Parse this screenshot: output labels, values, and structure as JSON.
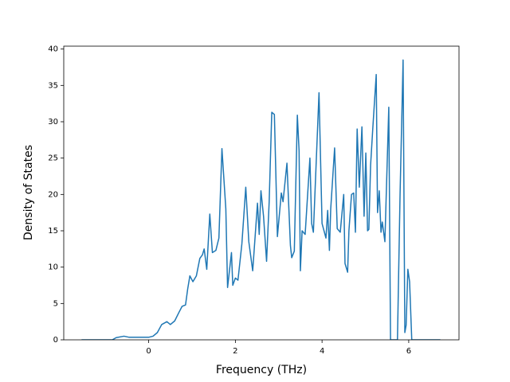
{
  "chart_data": {
    "type": "line",
    "x_label": "Frequency (THz)",
    "y_label": "Density of States",
    "xlim": [
      -1.96,
      7.16
    ],
    "ylim": [
      0,
      40.4
    ],
    "xticks": [
      0,
      2,
      4,
      6
    ],
    "yticks": [
      0,
      5,
      10,
      15,
      20,
      25,
      30,
      35,
      40
    ],
    "grid": false,
    "series": [
      {
        "color": "#1f77b4",
        "x": [
          -1.55,
          -0.84,
          -0.75,
          -0.57,
          -0.45,
          0,
          0.1,
          0.2,
          0.3,
          0.42,
          0.5,
          0.6,
          0.7,
          0.77,
          0.85,
          0.9,
          0.95,
          1.02,
          1.1,
          1.18,
          1.24,
          1.28,
          1.34,
          1.41,
          1.47,
          1.55,
          1.62,
          1.69,
          1.78,
          1.82,
          1.91,
          1.94,
          2.0,
          2.06,
          2.15,
          2.24,
          2.31,
          2.4,
          2.51,
          2.55,
          2.59,
          2.65,
          2.72,
          2.78,
          2.84,
          2.9,
          2.97,
          3.06,
          3.1,
          3.19,
          3.27,
          3.3,
          3.36,
          3.43,
          3.47,
          3.5,
          3.54,
          3.61,
          3.72,
          3.76,
          3.8,
          3.93,
          4.0,
          4.09,
          4.13,
          4.17,
          4.2,
          4.29,
          4.35,
          4.42,
          4.5,
          4.53,
          4.59,
          4.62,
          4.68,
          4.73,
          4.77,
          4.81,
          4.86,
          4.92,
          4.97,
          5.01,
          5.05,
          5.08,
          5.12,
          5.17,
          5.25,
          5.28,
          5.32,
          5.36,
          5.39,
          5.45,
          5.54,
          5.58,
          5.74,
          5.8,
          5.87,
          5.91,
          5.94,
          5.98,
          6.02,
          6.07,
          6.73
        ],
        "values": [
          0,
          0,
          0.3,
          0.5,
          0.35,
          0.35,
          0.5,
          1,
          2.1,
          2.5,
          2.1,
          2.6,
          3.8,
          4.6,
          4.8,
          7,
          8.8,
          8,
          8.8,
          11.2,
          11.7,
          12.5,
          9.7,
          17.3,
          12,
          12.3,
          14,
          26.3,
          18,
          7.2,
          12,
          7.5,
          8.5,
          8.2,
          13.2,
          21,
          13.5,
          9.5,
          18.8,
          14.5,
          20.5,
          17,
          10.8,
          19,
          31.3,
          31,
          14.2,
          20.2,
          19,
          24.3,
          13,
          11.3,
          12.2,
          30.9,
          26,
          9.5,
          15,
          14.5,
          25,
          16,
          14.8,
          34,
          16,
          14,
          17.8,
          12.3,
          18,
          26.4,
          15.3,
          14.8,
          20,
          10.5,
          9.3,
          15,
          20,
          20.2,
          14.8,
          29,
          21,
          29.3,
          17,
          25.7,
          15,
          15.2,
          24,
          29,
          36.5,
          17.5,
          20.5,
          14.8,
          16.2,
          13.5,
          32,
          0,
          0,
          20,
          38.5,
          1,
          2,
          9.7,
          8,
          0,
          0
        ]
      }
    ]
  }
}
